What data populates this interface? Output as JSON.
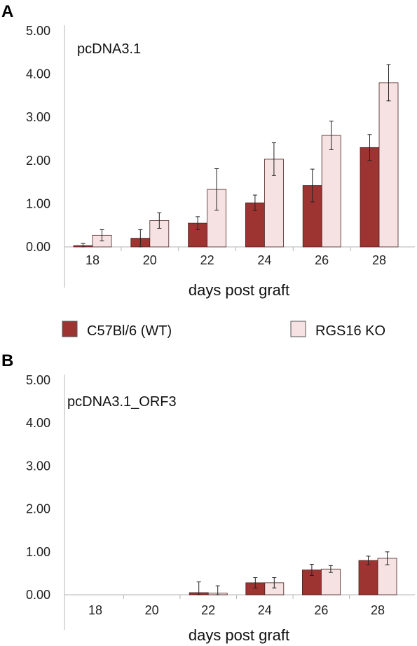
{
  "chart_data": [
    {
      "panel": "A",
      "type": "bar",
      "title": "pcDNA3.1",
      "xlabel": "days post graft",
      "ylabel": "",
      "categories": [
        "18",
        "20",
        "22",
        "24",
        "26",
        "28"
      ],
      "yticks": [
        "0.00",
        "1.00",
        "2.00",
        "3.00",
        "4.00",
        "5.00"
      ],
      "ylim": [
        0,
        5
      ],
      "series": [
        {
          "name": "C57Bl/6 (WT)",
          "color": "#9e3432",
          "values": [
            0.03,
            0.2,
            0.55,
            1.02,
            1.42,
            2.3
          ],
          "errors": [
            0.05,
            0.2,
            0.15,
            0.18,
            0.38,
            0.3
          ]
        },
        {
          "name": "RGS16 KO",
          "color": "#f6e2e2",
          "values": [
            0.27,
            0.61,
            1.33,
            2.03,
            2.58,
            3.8
          ],
          "errors": [
            0.13,
            0.18,
            0.48,
            0.38,
            0.33,
            0.42
          ]
        }
      ]
    },
    {
      "panel": "B",
      "type": "bar",
      "title": "pcDNA3.1_ORF3",
      "xlabel": "days post graft",
      "ylabel": "",
      "categories": [
        "18",
        "20",
        "22",
        "24",
        "26",
        "28"
      ],
      "yticks": [
        "0.00",
        "1.00",
        "2.00",
        "3.00",
        "4.00",
        "5.00"
      ],
      "ylim": [
        0,
        5
      ],
      "series": [
        {
          "name": "C57Bl/6 (WT)",
          "color": "#9e3432",
          "values": [
            0,
            0,
            0.05,
            0.28,
            0.58,
            0.8
          ],
          "errors": [
            0,
            0,
            0.25,
            0.12,
            0.13,
            0.1
          ]
        },
        {
          "name": "RGS16 KO",
          "color": "#f6e2e2",
          "values": [
            0,
            0,
            0.04,
            0.28,
            0.6,
            0.85
          ],
          "errors": [
            0,
            0,
            0.17,
            0.12,
            0.08,
            0.15
          ]
        }
      ]
    }
  ],
  "legend": [
    {
      "label": "C57Bl/6 (WT)",
      "color": "#9e3432"
    },
    {
      "label": "RGS16 KO",
      "color": "#f6e2e2"
    }
  ]
}
